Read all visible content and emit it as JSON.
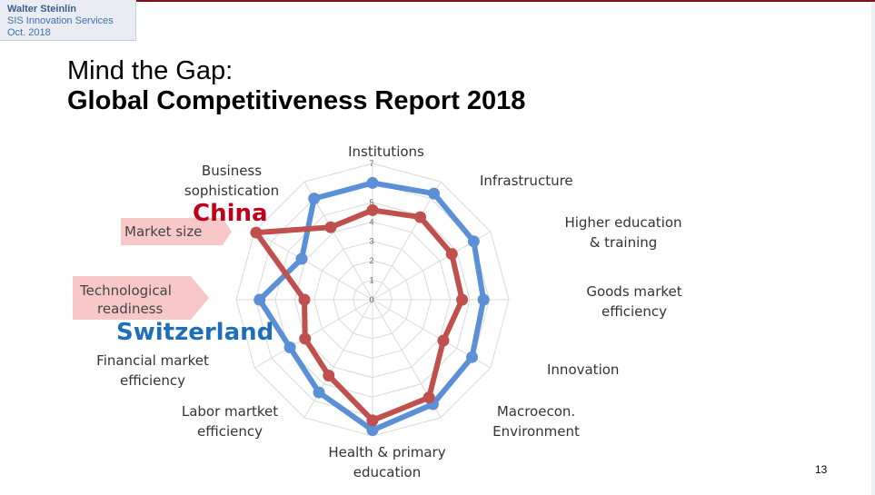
{
  "header": {
    "author": "Walter Steinlin",
    "org": "SIS Innovation Services",
    "date": "Oct. 2018"
  },
  "slide": {
    "title_line1": "Mind the Gap:",
    "title_line2": "Global Competitiveness Report 2018",
    "page_number": "13"
  },
  "callouts": {
    "market_size": "Market size",
    "tech_line1": "Technological",
    "tech_line2": "readiness"
  },
  "colors": {
    "switzerland": "#5b8fd6",
    "china": "#c0504d",
    "callout_fill": "#f8c8c8",
    "china_text": "#c0001a",
    "switzerland_text": "#1f6fb8"
  },
  "chart_data": {
    "type": "radar",
    "axes": [
      {
        "label": "Institutions"
      },
      {
        "label": "Infrastructure"
      },
      {
        "label": "Higher education & training"
      },
      {
        "label": "Goods market efficiency"
      },
      {
        "label": "Innovation"
      },
      {
        "label": "Macroecon. Environment"
      },
      {
        "label": "Health & primary education"
      },
      {
        "label": "Labor martket efficiency"
      },
      {
        "label": "Financial market efficiency"
      },
      {
        "label": "Technological readiness"
      },
      {
        "label": "Market size"
      },
      {
        "label": "Business sophistication"
      }
    ],
    "ticks": [
      "0",
      "1",
      "2",
      "3",
      "4",
      "5",
      "6",
      "7"
    ],
    "rmin": 0,
    "rmax": 7,
    "series": [
      {
        "name": "Switzerland",
        "values": [
          6.0,
          6.3,
          6.0,
          5.7,
          5.9,
          6.2,
          6.7,
          5.5,
          4.9,
          5.8,
          4.2,
          6.0
        ]
      },
      {
        "name": "China",
        "values": [
          4.6,
          4.9,
          4.7,
          4.6,
          4.2,
          5.8,
          6.2,
          4.5,
          4.0,
          3.5,
          6.9,
          4.3
        ]
      }
    ]
  }
}
